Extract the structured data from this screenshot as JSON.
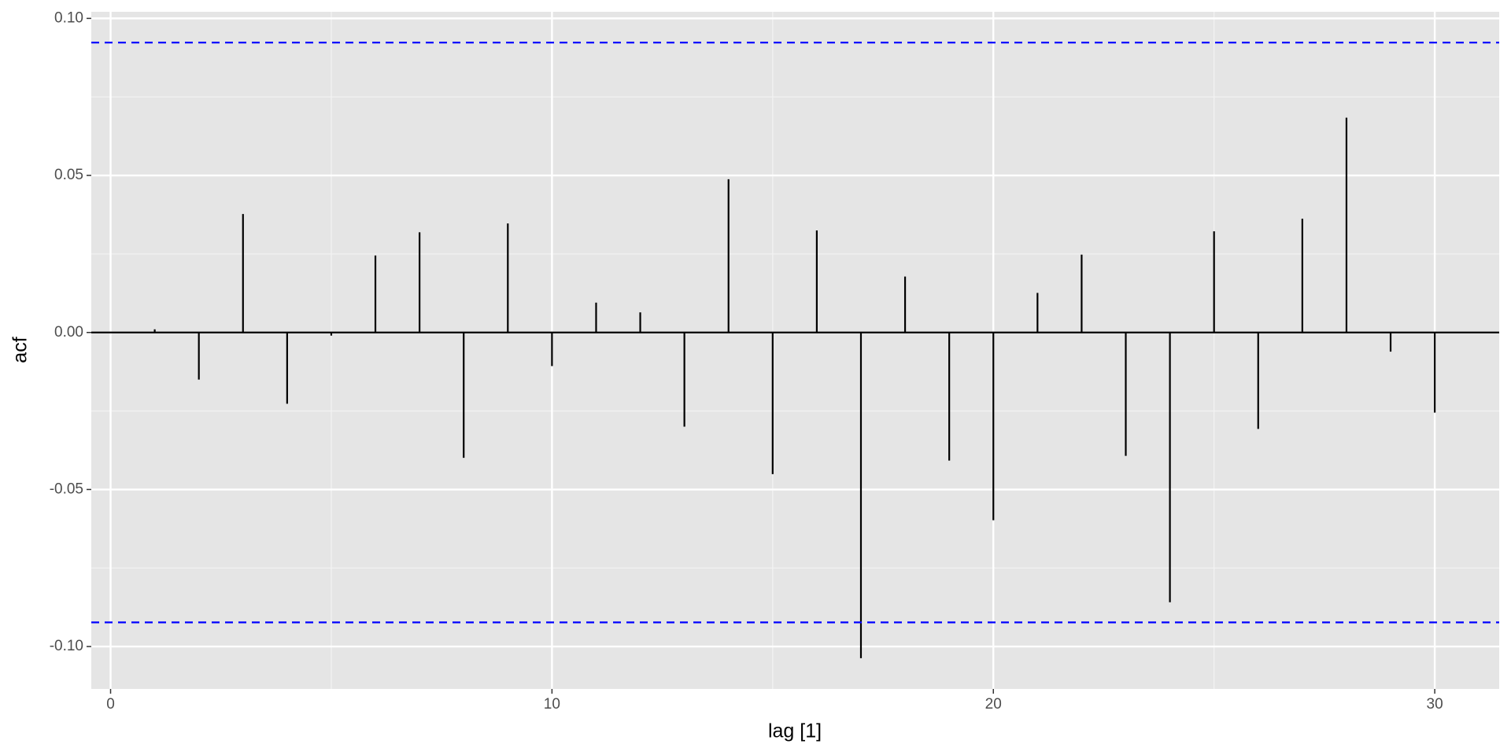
{
  "chart_data": {
    "type": "acf",
    "x_label": "lag [1]",
    "y_label": "acf",
    "x": [
      1,
      2,
      3,
      4,
      5,
      6,
      7,
      8,
      9,
      10,
      11,
      12,
      13,
      14,
      15,
      16,
      17,
      18,
      19,
      20,
      21,
      22,
      23,
      24,
      25,
      26,
      27,
      28,
      29,
      30
    ],
    "values": [
      0.001,
      -0.015,
      0.0377,
      -0.0227,
      -0.001,
      0.0245,
      0.0319,
      -0.0399,
      0.0347,
      -0.0107,
      0.0095,
      0.0064,
      -0.03,
      0.0488,
      -0.0451,
      0.0325,
      -0.1037,
      0.0178,
      -0.0408,
      -0.0598,
      0.0126,
      0.0248,
      -0.0393,
      -0.0859,
      0.0322,
      -0.0307,
      0.0362,
      0.0684,
      -0.0061,
      -0.0255
    ],
    "color": "#000000",
    "conf_limits": [
      -0.0923,
      0.0923
    ],
    "conf_color": "#0000ff",
    "xlim": [
      -0.437,
      31.46
    ],
    "ylim": [
      -0.1135,
      0.1021
    ],
    "xticks": [
      0,
      10,
      20,
      30
    ],
    "yticks": [
      {
        "value": -0.1,
        "label": "-0.10"
      },
      -0.05,
      {
        "value": 0,
        "label": "0.00"
      },
      0.05,
      {
        "value": 0.1,
        "label": "0.10"
      }
    ],
    "grid": true
  }
}
